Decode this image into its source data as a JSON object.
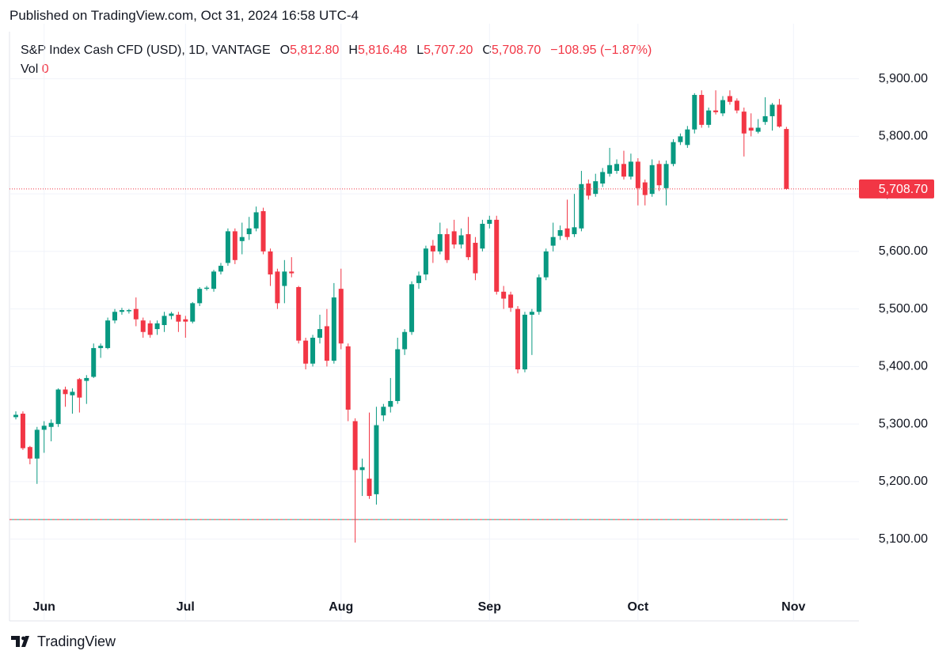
{
  "header": {
    "published": "Published on TradingView.com, Oct 31, 2024 16:58 UTC-4"
  },
  "legend": {
    "symbol": "S&P Index Cash CFD (USD), 1D, VANTAGE",
    "items": [
      {
        "key": "O",
        "value": "5,812.80"
      },
      {
        "key": "H",
        "value": "5,816.48"
      },
      {
        "key": "L",
        "value": "5,707.20"
      },
      {
        "key": "C",
        "value": "5,708.70"
      }
    ],
    "change": "−108.95 (−1.87%)",
    "volume_key": "Vol",
    "volume": "0"
  },
  "footer": {
    "brand": "TradingView"
  },
  "chart_data": {
    "type": "candlestick",
    "up_color": "#089981",
    "down_color": "#f23645",
    "categories": [
      null,
      null,
      null,
      null,
      "Jun",
      null,
      null,
      null,
      null,
      null,
      null,
      null,
      null,
      null,
      null,
      null,
      null,
      null,
      null,
      null,
      null,
      null,
      null,
      null,
      "Jul",
      null,
      null,
      null,
      null,
      null,
      null,
      null,
      null,
      null,
      null,
      null,
      null,
      null,
      null,
      null,
      null,
      null,
      null,
      null,
      null,
      null,
      "Aug",
      null,
      null,
      null,
      null,
      null,
      null,
      null,
      null,
      null,
      null,
      null,
      null,
      null,
      null,
      null,
      null,
      null,
      null,
      null,
      null,
      "Sep",
      null,
      null,
      null,
      null,
      null,
      null,
      null,
      null,
      null,
      null,
      null,
      null,
      null,
      null,
      null,
      null,
      null,
      null,
      null,
      null,
      "Oct",
      null,
      null,
      null,
      null,
      null,
      null,
      null,
      null,
      null,
      null,
      null,
      null,
      null,
      null,
      null,
      null,
      null,
      null,
      null,
      null,
      null,
      "Nov"
    ],
    "open": [
      5312,
      5318,
      5260,
      5240,
      5290,
      5295,
      5300,
      5360,
      5350,
      5378,
      5375,
      5382,
      5432,
      5432,
      5480,
      5495,
      5496,
      5500,
      5480,
      5475,
      5465,
      5472,
      5488,
      5490,
      5482,
      5478,
      5510,
      5535,
      5535,
      5565,
      5580,
      5635,
      5618,
      5630,
      5640,
      5670,
      5600,
      5565,
      5540,
      5565,
      5538,
      5445,
      5405,
      5450,
      5470,
      5410,
      5535,
      5435,
      5305,
      5220,
      5205,
      5178,
      5315,
      5330,
      5340,
      5430,
      5460,
      5545,
      5560,
      5610,
      5600,
      5630,
      5635,
      5612,
      5630,
      5615,
      5605,
      5648,
      5655,
      5530,
      5525,
      5500,
      5395,
      5490,
      5495,
      5555,
      5610,
      5627,
      5640,
      5630,
      5640,
      5718,
      5700,
      5718,
      5735,
      5740,
      5752,
      5730,
      5756,
      5720,
      5700,
      5752,
      5710,
      5752,
      5790,
      5785,
      5812,
      5872,
      5820,
      5845,
      5840,
      5870,
      5862,
      5843,
      5815,
      5808,
      5825,
      5835,
      5855,
      5812.8,
      null
    ],
    "high": [
      5322,
      5322,
      5262,
      5295,
      5305,
      5308,
      5362,
      5365,
      5362,
      5380,
      5385,
      5440,
      5440,
      5485,
      5500,
      5502,
      5500,
      5520,
      5485,
      5480,
      5480,
      5495,
      5495,
      5495,
      5488,
      5512,
      5538,
      5540,
      5568,
      5580,
      5640,
      5640,
      5650,
      5660,
      5678,
      5676,
      5605,
      5570,
      5585,
      5590,
      5540,
      5450,
      5455,
      5490,
      5500,
      5545,
      5570,
      5440,
      5310,
      5240,
      5320,
      5330,
      5335,
      5380,
      5450,
      5465,
      5548,
      5565,
      5610,
      5620,
      5650,
      5640,
      5655,
      5640,
      5660,
      5625,
      5655,
      5662,
      5662,
      5540,
      5530,
      5505,
      5495,
      5500,
      5560,
      5605,
      5650,
      5645,
      5690,
      5700,
      5740,
      5725,
      5735,
      5745,
      5780,
      5760,
      5775,
      5770,
      5762,
      5725,
      5760,
      5758,
      5758,
      5795,
      5805,
      5818,
      5875,
      5880,
      5850,
      5880,
      5870,
      5880,
      5866,
      5850,
      5840,
      5830,
      5868,
      5858,
      5865,
      5816.48,
      null
    ],
    "low": [
      5308,
      5255,
      5230,
      5196,
      5250,
      5270,
      5295,
      5330,
      5318,
      5320,
      5335,
      5380,
      5415,
      5430,
      5475,
      5490,
      5492,
      5470,
      5450,
      5450,
      5455,
      5460,
      5482,
      5460,
      5450,
      5475,
      5505,
      5532,
      5530,
      5560,
      5575,
      5578,
      5595,
      5620,
      5635,
      5595,
      5540,
      5500,
      5510,
      5555,
      5440,
      5395,
      5400,
      5440,
      5400,
      5405,
      5430,
      5305,
      5094,
      5175,
      5170,
      5160,
      5305,
      5320,
      5335,
      5420,
      5455,
      5535,
      5550,
      5580,
      5595,
      5580,
      5605,
      5605,
      5585,
      5550,
      5600,
      5640,
      5525,
      5500,
      5495,
      5388,
      5390,
      5420,
      5490,
      5550,
      5600,
      5620,
      5620,
      5625,
      5635,
      5690,
      5695,
      5712,
      5730,
      5735,
      5725,
      5725,
      5680,
      5680,
      5695,
      5705,
      5680,
      5748,
      5785,
      5780,
      5805,
      5815,
      5815,
      5838,
      5835,
      5855,
      5840,
      5765,
      5800,
      5805,
      5820,
      5810,
      5815,
      5707.2,
      null
    ],
    "close": [
      5316,
      5258,
      5240,
      5290,
      5297,
      5302,
      5360,
      5352,
      5356,
      5346,
      5380,
      5432,
      5436,
      5480,
      5495,
      5498,
      5498,
      5482,
      5460,
      5455,
      5475,
      5488,
      5492,
      5478,
      5478,
      5510,
      5535,
      5537,
      5565,
      5575,
      5635,
      5585,
      5625,
      5640,
      5668,
      5600,
      5560,
      5510,
      5565,
      5562,
      5445,
      5405,
      5450,
      5465,
      5410,
      5520,
      5440,
      5325,
      5220,
      5225,
      5175,
      5298,
      5330,
      5340,
      5430,
      5460,
      5543,
      5558,
      5605,
      5600,
      5630,
      5585,
      5612,
      5628,
      5590,
      5562,
      5648,
      5655,
      5530,
      5518,
      5502,
      5395,
      5490,
      5495,
      5555,
      5600,
      5625,
      5637,
      5625,
      5642,
      5717,
      5697,
      5722,
      5738,
      5750,
      5752,
      5730,
      5756,
      5710,
      5698,
      5750,
      5715,
      5752,
      5790,
      5800,
      5812,
      5872,
      5820,
      5845,
      5842,
      5863,
      5860,
      5845,
      5805,
      5810,
      5815,
      5835,
      5855,
      5817,
      5708.7,
      null
    ],
    "ylim": [
      5006,
      5982
    ],
    "yticks": [
      {
        "value": 5100,
        "label": "5,100.00"
      },
      {
        "value": 5200,
        "label": "5,200.00"
      },
      {
        "value": 5300,
        "label": "5,300.00"
      },
      {
        "value": 5400,
        "label": "5,400.00"
      },
      {
        "value": 5500,
        "label": "5,500.00"
      },
      {
        "value": 5600,
        "label": "5,600.00"
      },
      {
        "value": 5700,
        "label": "5,700.00"
      },
      {
        "value": 5800,
        "label": "5,800.00"
      },
      {
        "value": 5900,
        "label": "5,900.00"
      }
    ],
    "last_price": {
      "value": 5708.7,
      "label": "5,708.70",
      "color": "#f23645"
    },
    "reference_line": 5134,
    "grid": true
  }
}
